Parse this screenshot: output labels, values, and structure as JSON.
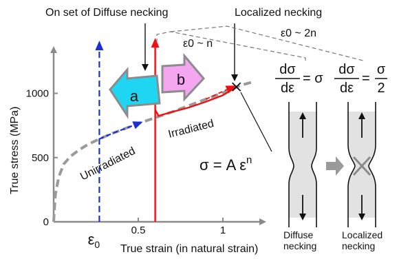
{
  "chart_data": {
    "type": "line",
    "xlabel": "True strain (in natural strain)",
    "ylabel": "True stress (MPa)",
    "xlim": [
      0,
      1.2
    ],
    "ylim": [
      0,
      1300
    ],
    "x_ticks": [
      {
        "v": 0.5,
        "label": "0.5"
      },
      {
        "v": 1,
        "label": "1"
      }
    ],
    "y_ticks": [
      {
        "v": 0,
        "label": "0"
      },
      {
        "v": 500,
        "label": "500"
      },
      {
        "v": 1000,
        "label": "1000"
      }
    ],
    "epsilon0": {
      "x": 0.27,
      "label": "ε0"
    },
    "series": [
      {
        "name": "Unirradiated",
        "x": [
          0.0,
          0.01,
          0.03,
          0.06,
          0.1,
          0.15,
          0.2,
          0.27,
          0.35,
          0.43,
          0.5,
          0.6,
          0.7,
          0.8,
          0.9,
          1.0,
          1.1,
          1.18
        ],
        "y": [
          0,
          210,
          350,
          450,
          510,
          560,
          600,
          645,
          690,
          730,
          765,
          810,
          855,
          905,
          955,
          1005,
          1060,
          1090
        ]
      },
      {
        "name": "Irradiated",
        "x": [
          0.6,
          0.6,
          0.605,
          0.62,
          0.7,
          0.8,
          0.9,
          1.0,
          1.08
        ],
        "y": [
          0,
          840,
          860,
          825,
          855,
          890,
          935,
          985,
          1050
        ]
      }
    ],
    "necking_onset_x": 0.6,
    "localized_necking_x": 1.08,
    "annotations": {
      "onset_diffuse": "On set of Diffuse necking",
      "localized": "Localized necking",
      "eps_n": "ε0 ~ n",
      "eps_2n": "ε0 ~ 2n",
      "arrow_a": "a",
      "arrow_b": "b",
      "power_law": "σ = A ε",
      "power_law_exp": "n",
      "cond1_num": "dσ",
      "cond1_den": "dε",
      "cond1_rhs": "= σ",
      "cond2_num": "dσ",
      "cond2_den": "dε",
      "cond2_eq": "=",
      "cond2_rhs_num": "σ",
      "cond2_rhs_den": "2",
      "diffuse_label_1": "Diffuse",
      "diffuse_label_2": "necking",
      "localized_label_1": "Localized",
      "localized_label_2": "necking"
    },
    "colors": {
      "unirradiated": "#9a9a9a",
      "irradiated": "#ee1111",
      "blue_dashed": "#1a2fd6",
      "arrow_a": "#1fd6f2",
      "arrow_b": "#f5a6f0",
      "specimen_fill": "#e2e2e2"
    }
  }
}
